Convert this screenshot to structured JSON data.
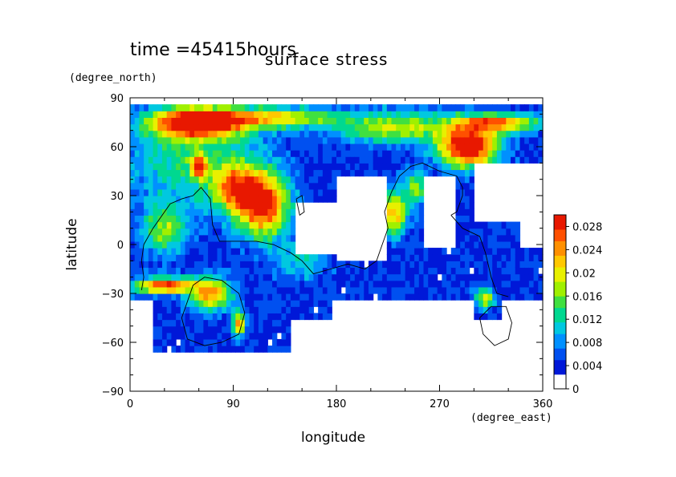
{
  "chart_data": {
    "type": "heatmap",
    "time_label": "time =45415hours",
    "title": "surface stress",
    "xlabel": "longitude",
    "ylabel": "latitude",
    "xunit": "(degree_east)",
    "yunit": "(degree_north)",
    "xlim": [
      0,
      360
    ],
    "ylim": [
      -90,
      90
    ],
    "xticks": [
      "0",
      "90",
      "180",
      "270",
      "360"
    ],
    "yticks": [
      "90",
      "60",
      "30",
      "0",
      "−30",
      "−60",
      "−90"
    ],
    "colorbar": {
      "ticks": [
        "0.028",
        "0.024",
        "0.02",
        "0.016",
        "0.012",
        "0.008",
        "0.004",
        "0"
      ],
      "range": [
        0,
        0.03
      ],
      "colors": [
        "#ffffff",
        "#0018d8",
        "#0050f0",
        "#0090ff",
        "#00c8e0",
        "#00d890",
        "#40e040",
        "#a0f000",
        "#e8f000",
        "#ffc800",
        "#ff9000",
        "#ff5000",
        "#e81800"
      ]
    },
    "blobs": [
      {
        "lon": 55,
        "lat": 55,
        "rl": 55,
        "rt": 30,
        "v": 0.01
      },
      {
        "lon": 60,
        "lat": 75,
        "rl": 40,
        "rt": 8,
        "v": 0.03
      },
      {
        "lon": 130,
        "lat": 78,
        "rl": 50,
        "rt": 6,
        "v": 0.016
      },
      {
        "lon": 230,
        "lat": 72,
        "rl": 50,
        "rt": 10,
        "v": 0.014
      },
      {
        "lon": 295,
        "lat": 60,
        "rl": 25,
        "rt": 12,
        "v": 0.03
      },
      {
        "lon": 320,
        "lat": 75,
        "rl": 35,
        "rt": 6,
        "v": 0.02
      },
      {
        "lon": 60,
        "lat": 48,
        "rl": 6,
        "rt": 6,
        "v": 0.022
      },
      {
        "lon": 115,
        "lat": 25,
        "rl": 22,
        "rt": 20,
        "v": 0.026
      },
      {
        "lon": 90,
        "lat": 35,
        "rl": 18,
        "rt": 14,
        "v": 0.016
      },
      {
        "lon": 30,
        "lat": -25,
        "rl": 25,
        "rt": 5,
        "v": 0.024
      },
      {
        "lon": 70,
        "lat": -30,
        "rl": 18,
        "rt": 10,
        "v": 0.02
      },
      {
        "lon": 95,
        "lat": -48,
        "rl": 6,
        "rt": 8,
        "v": 0.018
      },
      {
        "lon": 230,
        "lat": 20,
        "rl": 12,
        "rt": 14,
        "v": 0.018
      },
      {
        "lon": 250,
        "lat": 35,
        "rl": 10,
        "rt": 10,
        "v": 0.012
      },
      {
        "lon": 310,
        "lat": -33,
        "rl": 8,
        "rt": 6,
        "v": 0.016
      },
      {
        "lon": 30,
        "lat": 10,
        "rl": 20,
        "rt": 15,
        "v": 0.012
      },
      {
        "lon": 150,
        "lat": -10,
        "rl": 20,
        "rt": 12,
        "v": 0.008
      }
    ],
    "base_value": 0.004,
    "blank_regions": [
      {
        "lon0": 180,
        "lon1": 225,
        "lat0": -10,
        "lat1": 42
      },
      {
        "lon0": 145,
        "lon1": 178,
        "lat0": -5,
        "lat1": 25
      },
      {
        "lon0": 255,
        "lon1": 285,
        "lat0": 0,
        "lat1": 40
      },
      {
        "lon0": 340,
        "lon1": 360,
        "lat0": 0,
        "lat1": 50
      },
      {
        "lon0": 300,
        "lon1": 340,
        "lat0": 15,
        "lat1": 50
      },
      {
        "lon0": 0,
        "lon1": 140,
        "lat0": -90,
        "lat1": -65
      },
      {
        "lon0": 140,
        "lon1": 360,
        "lat0": -90,
        "lat1": -45
      },
      {
        "lon0": 0,
        "lon1": 360,
        "lat0": 86,
        "lat1": 90
      },
      {
        "lon0": 175,
        "lon1": 300,
        "lat0": -45,
        "lat1": -35
      },
      {
        "lon0": 0,
        "lon1": 20,
        "lat0": -90,
        "lat1": -35
      },
      {
        "lon0": 325,
        "lon1": 360,
        "lat0": -90,
        "lat1": -35
      }
    ],
    "coastlines": [
      [
        [
          12,
          0
        ],
        [
          20,
          10
        ],
        [
          35,
          25
        ],
        [
          45,
          28
        ],
        [
          55,
          30
        ],
        [
          62,
          35
        ],
        [
          70,
          28
        ],
        [
          72,
          12
        ],
        [
          78,
          2
        ],
        [
          95,
          2
        ],
        [
          110,
          2
        ],
        [
          125,
          0
        ],
        [
          140,
          -5
        ],
        [
          150,
          -10
        ],
        [
          160,
          -18
        ],
        [
          175,
          -15
        ],
        [
          190,
          -12
        ],
        [
          205,
          -15
        ],
        [
          215,
          -10
        ],
        [
          220,
          0
        ],
        [
          225,
          10
        ],
        [
          222,
          20
        ],
        [
          228,
          32
        ],
        [
          235,
          42
        ],
        [
          245,
          48
        ],
        [
          255,
          50
        ],
        [
          270,
          45
        ],
        [
          285,
          42
        ],
        [
          290,
          35
        ],
        [
          290,
          30
        ],
        [
          285,
          20
        ],
        [
          280,
          18
        ]
      ],
      [
        [
          280,
          18
        ],
        [
          290,
          10
        ],
        [
          305,
          5
        ],
        [
          310,
          -5
        ],
        [
          315,
          -20
        ],
        [
          320,
          -30
        ],
        [
          330,
          -32
        ]
      ],
      [
        [
          10,
          -28
        ],
        [
          12,
          -20
        ],
        [
          10,
          -10
        ],
        [
          12,
          0
        ]
      ],
      [
        [
          50,
          -35
        ],
        [
          55,
          -25
        ],
        [
          65,
          -20
        ],
        [
          80,
          -22
        ],
        [
          95,
          -30
        ],
        [
          100,
          -42
        ],
        [
          95,
          -55
        ],
        [
          80,
          -60
        ],
        [
          65,
          -62
        ],
        [
          50,
          -58
        ],
        [
          45,
          -45
        ],
        [
          50,
          -35
        ]
      ],
      [
        [
          305,
          -45
        ],
        [
          315,
          -38
        ],
        [
          328,
          -38
        ],
        [
          333,
          -48
        ],
        [
          330,
          -58
        ],
        [
          318,
          -62
        ],
        [
          308,
          -55
        ],
        [
          305,
          -45
        ]
      ],
      [
        [
          145,
          28
        ],
        [
          150,
          30
        ],
        [
          152,
          20
        ],
        [
          148,
          18
        ],
        [
          145,
          28
        ]
      ]
    ]
  }
}
